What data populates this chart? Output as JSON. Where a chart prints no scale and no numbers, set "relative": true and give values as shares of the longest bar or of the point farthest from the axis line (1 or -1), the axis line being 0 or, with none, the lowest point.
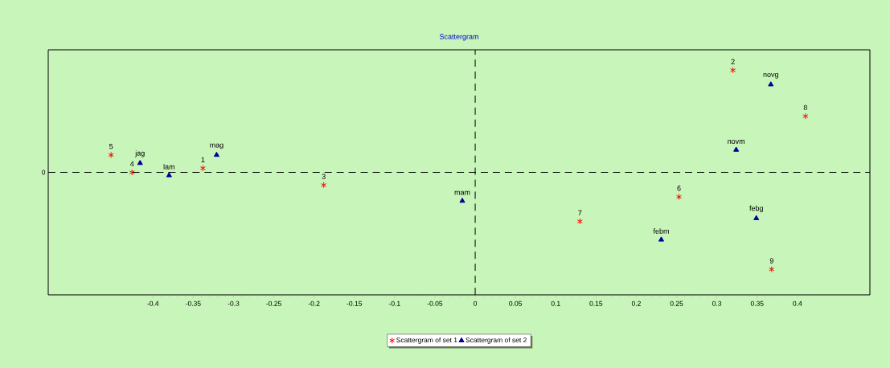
{
  "chart_data": {
    "type": "scatter",
    "title": "Scattergram",
    "relative": true,
    "legend": "bottom",
    "xlim": [
      -0.53,
      0.49
    ],
    "xticks": [
      -0.4,
      -0.35,
      -0.3,
      -0.25,
      -0.2,
      -0.15,
      -0.1,
      -0.05,
      0,
      0.05,
      0.1,
      0.15,
      0.2,
      0.25,
      0.3,
      0.35,
      0.4
    ],
    "series": [
      {
        "name": "Scattergram of set 1",
        "color": "#ff0000",
        "marker": "cross",
        "x": [
          -0.338,
          0.32,
          -0.188,
          -0.426,
          -0.452,
          0.253,
          0.13,
          0.41,
          0.368
        ],
        "values": [
          0.04,
          1,
          -0.125,
          0,
          0.17,
          -0.24,
          -0.48,
          0.55,
          -0.95
        ]
      },
      {
        "name": "Scattergram of set 2",
        "color": "#000099",
        "marker": "triangle",
        "x": [
          -0.416,
          -0.38,
          -0.321,
          -0.016,
          0.231,
          0.349,
          0.324,
          0.367
        ],
        "values": [
          0.09,
          -0.03,
          0.17,
          -0.28,
          -0.66,
          -0.45,
          0.22,
          0.86
        ]
      }
    ],
    "ref_lines": [
      {
        "axis": "y",
        "value": 0,
        "label": "0",
        "line_style": "dashed",
        "color": "#000000"
      },
      {
        "axis": "x",
        "value": 0,
        "line_style": "dashed",
        "color": "#000000"
      }
    ],
    "annotations": [
      {
        "text": "1",
        "x": -0.338,
        "y": 0.04
      },
      {
        "text": "2",
        "x": 0.32,
        "y": 1
      },
      {
        "text": "3",
        "x": -0.188,
        "y": -0.125
      },
      {
        "text": "4",
        "x": -0.426,
        "y": 0
      },
      {
        "text": "5",
        "x": -0.452,
        "y": 0.17
      },
      {
        "text": "6",
        "x": 0.253,
        "y": -0.24
      },
      {
        "text": "7",
        "x": 0.13,
        "y": -0.48
      },
      {
        "text": "8",
        "x": 0.41,
        "y": 0.55
      },
      {
        "text": "9",
        "x": 0.368,
        "y": -0.95
      },
      {
        "text": "jag",
        "x": -0.416,
        "y": 0.09
      },
      {
        "text": "lam",
        "x": -0.38,
        "y": -0.03
      },
      {
        "text": "mag",
        "x": -0.321,
        "y": 0.17
      },
      {
        "text": "mam",
        "x": -0.016,
        "y": -0.28
      },
      {
        "text": "febm",
        "x": 0.231,
        "y": -0.66
      },
      {
        "text": "febg",
        "x": 0.349,
        "y": -0.45
      },
      {
        "text": "novm",
        "x": 0.324,
        "y": 0.22
      },
      {
        "text": "novg",
        "x": 0.367,
        "y": 0.86
      }
    ]
  }
}
